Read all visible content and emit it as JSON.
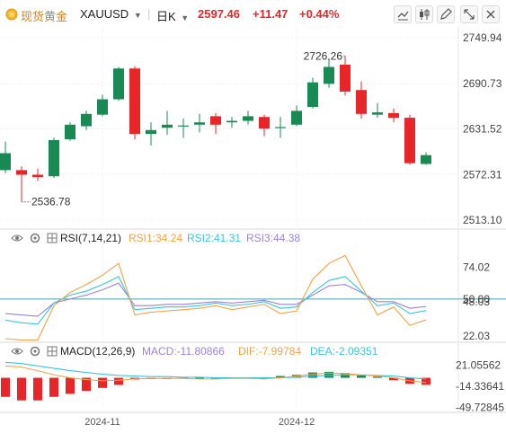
{
  "header": {
    "name": "现货黄金",
    "symbol": "XAUUSD",
    "period": "日K",
    "price": "2597.46",
    "change": "+11.47",
    "change_pct": "+0.44%"
  },
  "indicators": {
    "rsi": {
      "label": "RSI(7,14,21)",
      "rsi1": "RSI1:34.24",
      "rsi2": "RSI2:41.31",
      "rsi3": "RSI3:44.38"
    },
    "macd": {
      "label": "MACD(12,26,9)",
      "macd": "MACD:-11.80866",
      "dif": "DIF:-7.99784",
      "dea": "DEA:-2.09351"
    }
  },
  "colors": {
    "up": "#1a8a55",
    "down": "#e8262a",
    "rsi1": "#f0a24a",
    "rsi2": "#3cc4d8",
    "rsi3": "#9b84d6",
    "dif": "#f0a24a",
    "dea": "#3cc4d8"
  },
  "chart_data": {
    "type": "candlestick",
    "price_axis": {
      "ticks": [
        2749.94,
        2690.73,
        2631.52,
        2572.31,
        2513.1
      ],
      "ylim": [
        2513.1,
        2749.94
      ],
      "labels": [
        "2749.94",
        "2690.73",
        "2631.52",
        "2572.31",
        "2513.10"
      ]
    },
    "high_annotation": "2726.26",
    "low_annotation": "2536.78",
    "x_labels": [
      {
        "label": "2024-11",
        "index": 6
      },
      {
        "label": "2024-12",
        "index": 18
      }
    ],
    "candles": [
      {
        "o": 2578,
        "h": 2615,
        "l": 2574,
        "c": 2600
      },
      {
        "o": 2578,
        "h": 2583,
        "l": 2536.78,
        "c": 2572
      },
      {
        "o": 2572,
        "h": 2580,
        "l": 2564,
        "c": 2569
      },
      {
        "o": 2570,
        "h": 2620,
        "l": 2568,
        "c": 2617
      },
      {
        "o": 2618,
        "h": 2640,
        "l": 2616,
        "c": 2637
      },
      {
        "o": 2635,
        "h": 2655,
        "l": 2630,
        "c": 2651
      },
      {
        "o": 2650,
        "h": 2676,
        "l": 2648,
        "c": 2670
      },
      {
        "o": 2670,
        "h": 2712,
        "l": 2668,
        "c": 2710
      },
      {
        "o": 2710,
        "h": 2713,
        "l": 2618,
        "c": 2625
      },
      {
        "o": 2625,
        "h": 2640,
        "l": 2610,
        "c": 2630
      },
      {
        "o": 2633,
        "h": 2655,
        "l": 2624,
        "c": 2637
      },
      {
        "o": 2636,
        "h": 2645,
        "l": 2620,
        "c": 2636
      },
      {
        "o": 2637,
        "h": 2651,
        "l": 2627,
        "c": 2640
      },
      {
        "o": 2648,
        "h": 2652,
        "l": 2625,
        "c": 2637
      },
      {
        "o": 2640,
        "h": 2647,
        "l": 2633,
        "c": 2642
      },
      {
        "o": 2642,
        "h": 2655,
        "l": 2637,
        "c": 2648
      },
      {
        "o": 2647,
        "h": 2650,
        "l": 2622,
        "c": 2632
      },
      {
        "o": 2634,
        "h": 2647,
        "l": 2620,
        "c": 2634
      },
      {
        "o": 2637,
        "h": 2662,
        "l": 2635,
        "c": 2655
      },
      {
        "o": 2660,
        "h": 2698,
        "l": 2658,
        "c": 2692
      },
      {
        "o": 2690,
        "h": 2722,
        "l": 2685,
        "c": 2712
      },
      {
        "o": 2715,
        "h": 2726.26,
        "l": 2675,
        "c": 2680
      },
      {
        "o": 2682,
        "h": 2693,
        "l": 2645,
        "c": 2651
      },
      {
        "o": 2650,
        "h": 2665,
        "l": 2646,
        "c": 2653
      },
      {
        "o": 2652,
        "h": 2658,
        "l": 2640,
        "c": 2646
      },
      {
        "o": 2646,
        "h": 2650,
        "l": 2585,
        "c": 2587
      },
      {
        "o": 2586,
        "h": 2601,
        "l": 2585,
        "c": 2597.46
      }
    ],
    "rsi": {
      "ticks": [
        74.02,
        50.0,
        48.03,
        22.03
      ],
      "labels": [
        "74.02",
        "50.00",
        "48.03",
        "22.03"
      ],
      "ylim": [
        20,
        88
      ],
      "baseline": 50.0,
      "rsi1": [
        20,
        19,
        19,
        45,
        55,
        61,
        68,
        77,
        38,
        40,
        41,
        42,
        43,
        45,
        42,
        44,
        46,
        39,
        41,
        65,
        77,
        83,
        60,
        38,
        44,
        30,
        34.24
      ],
      "rsi2": [
        34,
        32,
        31,
        47,
        53,
        56,
        61,
        67,
        42,
        43,
        44,
        44,
        45,
        47,
        45,
        46,
        48,
        43,
        44,
        55,
        64,
        67,
        56,
        45,
        47,
        39,
        41.31
      ],
      "rsi3": [
        39,
        38,
        37,
        47,
        50,
        53,
        57,
        62,
        45,
        45,
        46,
        46,
        47,
        48,
        47,
        48,
        49,
        46,
        46,
        53,
        60,
        61,
        55,
        48,
        48,
        43,
        44.38
      ]
    },
    "macd": {
      "ticks": [
        21.05562,
        -14.33641,
        -49.72845
      ],
      "labels": [
        "21.05562",
        "-14.33641",
        "-49.72845"
      ],
      "ylim": [
        -52,
        28
      ],
      "hist": [
        -32,
        -38,
        -38,
        -32,
        -27,
        -22,
        -17,
        -12,
        -3,
        -2,
        -2,
        -1,
        0,
        -1,
        0,
        0,
        -2,
        3,
        5,
        9,
        10,
        8,
        4,
        2,
        -4,
        -10,
        -11.80866
      ],
      "dif": [
        20,
        18,
        12,
        5,
        0,
        -3,
        -5,
        -4,
        -2,
        -1,
        -1,
        -1,
        -2,
        -2,
        -1,
        -1,
        -2,
        0,
        3,
        6,
        8,
        7,
        5,
        3,
        0,
        -5,
        -7.99784
      ],
      "dea": [
        26,
        24,
        20,
        16,
        12,
        9,
        6,
        4,
        3,
        2,
        2,
        1,
        1,
        0,
        0,
        0,
        0,
        0,
        1,
        3,
        4,
        5,
        5,
        4,
        3,
        0,
        -2.09351
      ]
    }
  }
}
